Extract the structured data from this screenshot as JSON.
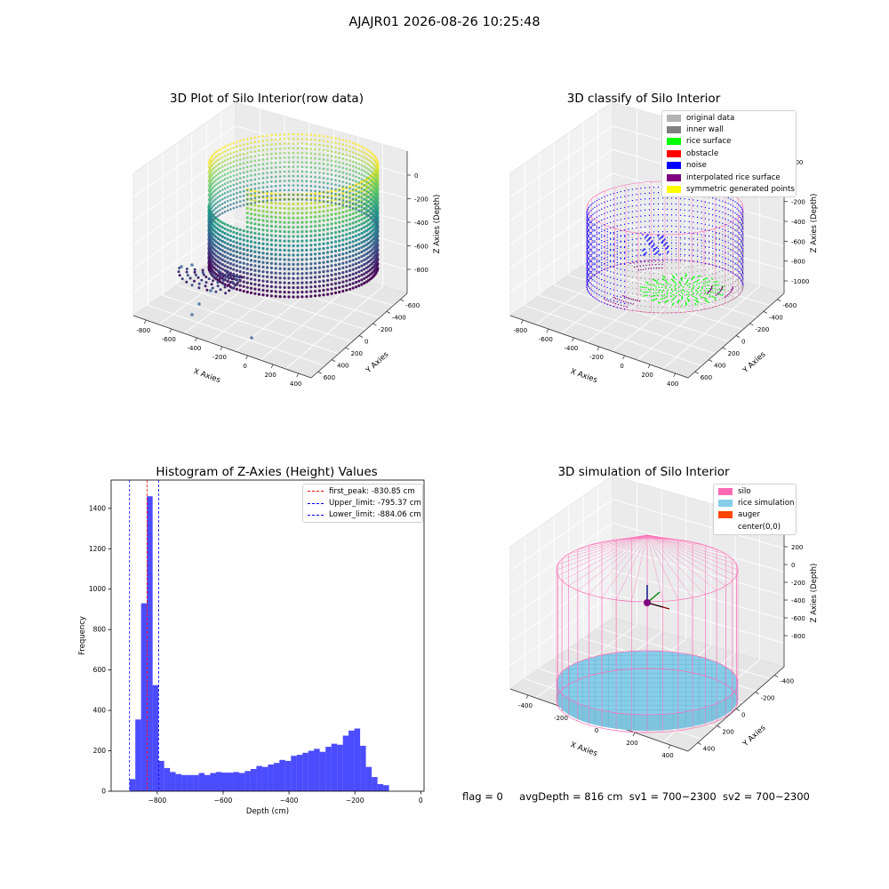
{
  "header": {
    "title": "AJAJR01 2026-08-26 10:25:48"
  },
  "status": {
    "flag": "flag = 0",
    "avg_depth": "avgDepth = 816 cm",
    "sv1": "sv1 = 700~2300",
    "sv2": "sv2 = 700~2300"
  },
  "chart_data": [
    {
      "type": "scatter",
      "title": "3D Plot of Silo Interior(row data)",
      "xlabel": "X Axies",
      "ylabel": "Y Axies",
      "zlabel": "Z Axies (Depth)",
      "x_ticks": [
        "-800",
        "-600",
        "-400",
        "-200",
        "0",
        "200",
        "400"
      ],
      "y_ticks": [
        "-600",
        "-400",
        "-200",
        "0",
        "200",
        "400",
        "600"
      ],
      "z_ticks": [
        "-800",
        "-600",
        "-400",
        "-200",
        "0"
      ],
      "colormap": "viridis"
    },
    {
      "type": "scatter",
      "title": "3D classify of Silo Interior",
      "xlabel": "X Axies",
      "ylabel": "Y Axies",
      "zlabel": "Z Axies (Depth)",
      "x_ticks": [
        "-800",
        "-600",
        "-400",
        "-200",
        "0",
        "200",
        "400"
      ],
      "y_ticks": [
        "-600",
        "-400",
        "-200",
        "0",
        "200",
        "400",
        "600"
      ],
      "z_ticks": [
        "-1000",
        "-800",
        "-600",
        "-400",
        "-200",
        "0",
        "200"
      ],
      "legend": [
        {
          "label": "original data",
          "color": "#b3b3b3"
        },
        {
          "label": "inner wall",
          "color": "#808080"
        },
        {
          "label": "rice surface",
          "color": "#00ff00"
        },
        {
          "label": "obstacle",
          "color": "#ff0000"
        },
        {
          "label": "noise",
          "color": "#0000ff"
        },
        {
          "label": "interpolated rice surface",
          "color": "#800080"
        },
        {
          "label": "symmetric generated points",
          "color": "#ffff00"
        }
      ],
      "legend_placement": "top-right"
    },
    {
      "type": "bar",
      "title": "Histogram of Z-Axies (Height) Values",
      "xlabel": "Depth (cm)",
      "ylabel": "Frequency",
      "xlim": [
        -940,
        10
      ],
      "ylim": [
        0,
        1540
      ],
      "x_ticks": [
        -800,
        -600,
        -400,
        -200,
        0
      ],
      "y_ticks": [
        0,
        200,
        400,
        600,
        800,
        1000,
        1200,
        1400
      ],
      "bin_start": -884,
      "bin_width": 17.5,
      "values": [
        60,
        355,
        930,
        1460,
        525,
        150,
        115,
        95,
        85,
        80,
        80,
        80,
        90,
        80,
        90,
        95,
        92,
        92,
        95,
        90,
        100,
        110,
        125,
        120,
        132,
        140,
        155,
        150,
        175,
        180,
        190,
        200,
        210,
        195,
        220,
        235,
        230,
        275,
        300,
        310,
        225,
        120,
        70,
        35,
        30
      ],
      "bar_color": "#0000ff",
      "lines": [
        {
          "label": "first_peak: -830.85 cm",
          "value": -830.85,
          "color": "#ff0000"
        },
        {
          "label": "Upper_limit: -795.37 cm",
          "value": -795.37,
          "color": "#0000ff"
        },
        {
          "label": "Lower_limit: -884.06 cm",
          "value": -884.06,
          "color": "#0000ff"
        }
      ],
      "legend_placement": "top-right"
    },
    {
      "type": "scatter",
      "title": "3D simulation of Silo Interior",
      "xlabel": "X Axies",
      "ylabel": "Y Axies",
      "zlabel": "Z Axies (Depth)",
      "x_ticks": [
        "-400",
        "-200",
        "0",
        "200",
        "400"
      ],
      "y_ticks": [
        "-400",
        "-200",
        "0",
        "200",
        "400"
      ],
      "z_ticks": [
        "-800",
        "-600",
        "-400",
        "-200",
        "0",
        "200"
      ],
      "legend": [
        {
          "label": "silo",
          "color": "#ff69b4"
        },
        {
          "label": "rice simulation",
          "color": "#87ceeb"
        },
        {
          "label": "auger",
          "color": "#ff4500"
        },
        {
          "label": "center(0,0)",
          "color": ""
        }
      ],
      "legend_placement": "top-right"
    }
  ]
}
